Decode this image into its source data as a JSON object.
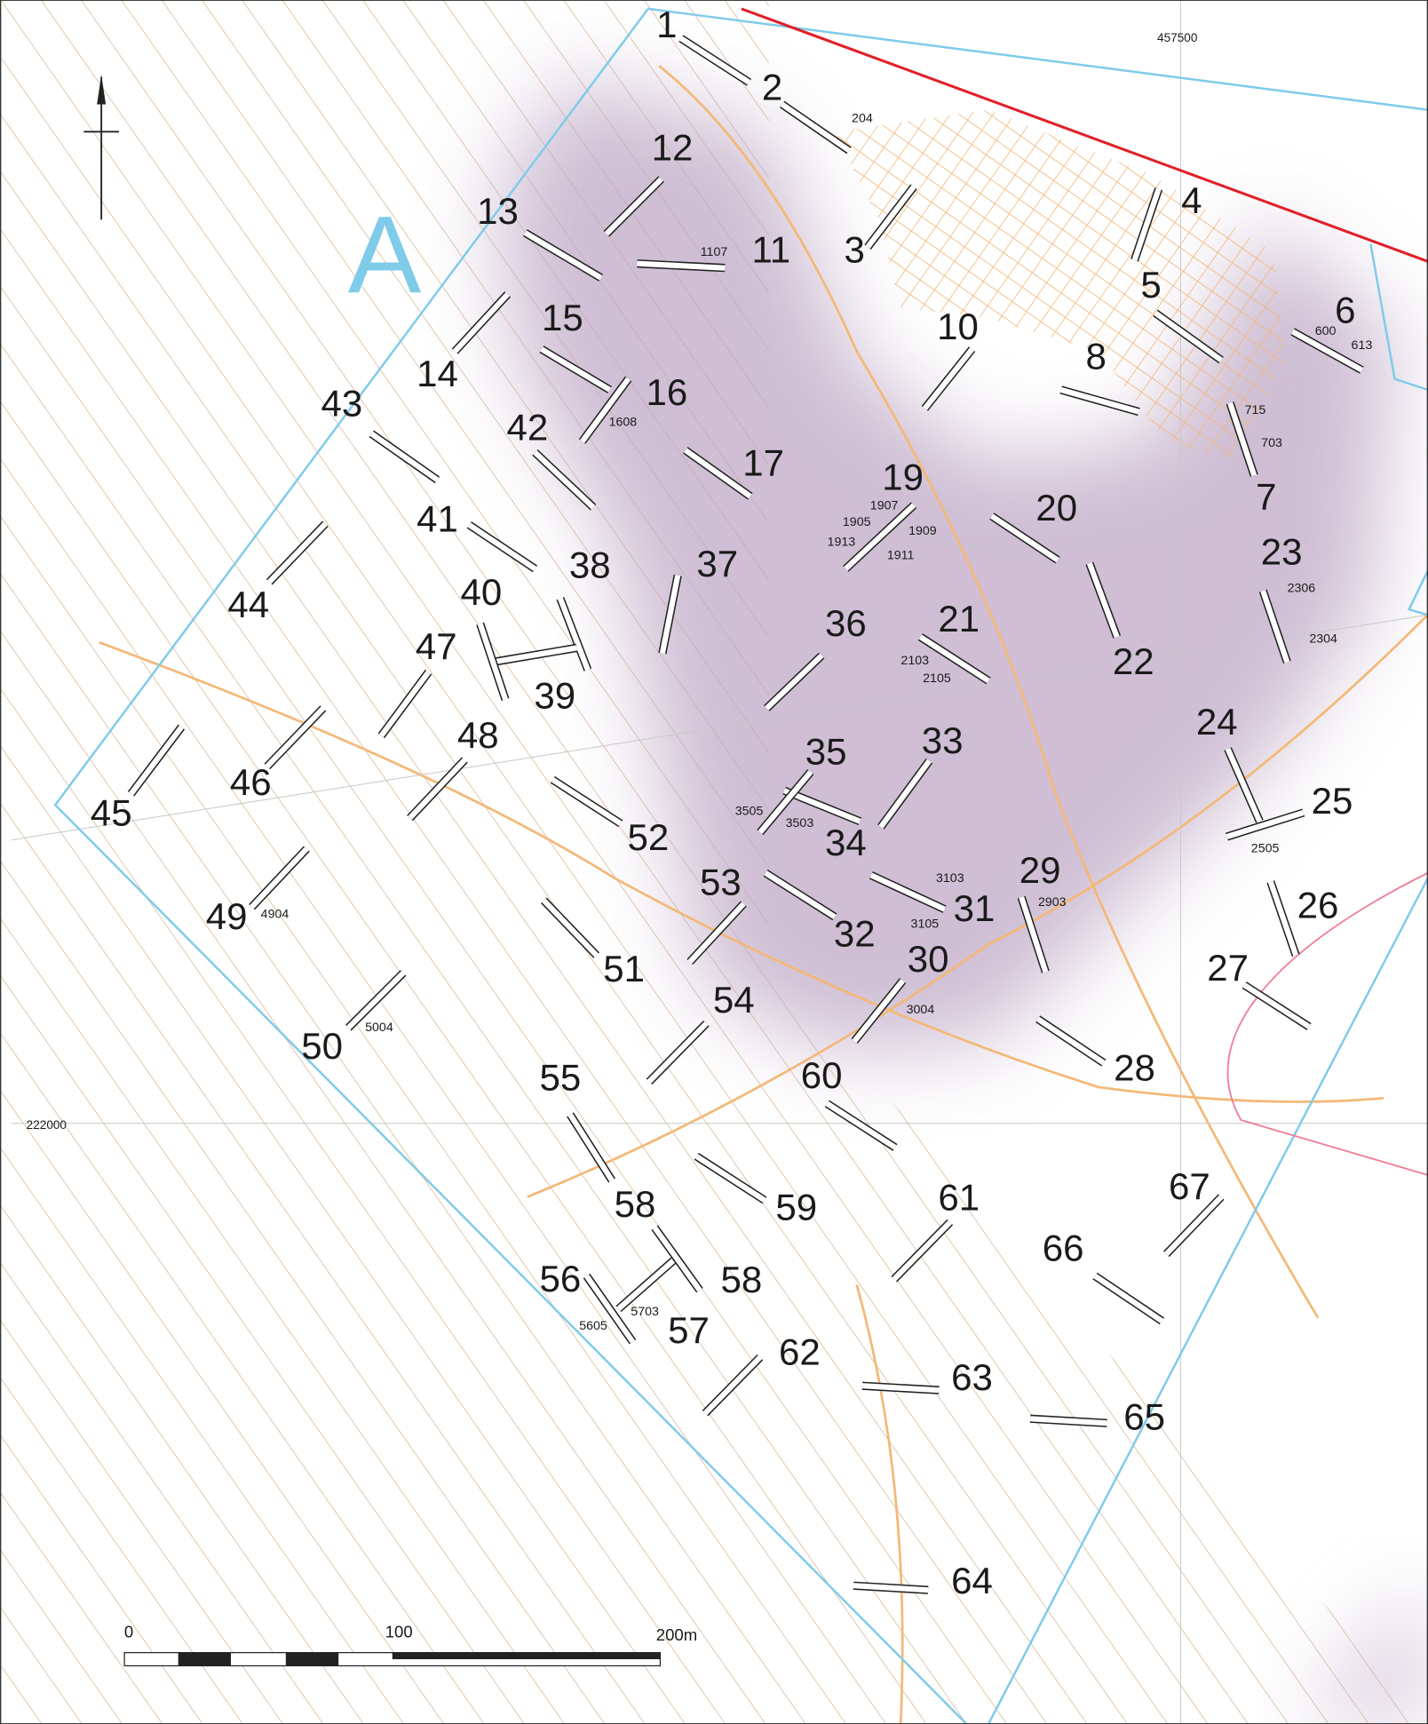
{
  "map": {
    "section_label": "A",
    "grid_labels": [
      "457500",
      "222000"
    ],
    "trenches": [
      "1",
      "2",
      "3",
      "4",
      "5",
      "6",
      "7",
      "8",
      "10",
      "11",
      "12",
      "13",
      "14",
      "15",
      "16",
      "17",
      "19",
      "20",
      "21",
      "22",
      "23",
      "24",
      "25",
      "26",
      "27",
      "28",
      "29",
      "30",
      "31",
      "32",
      "33",
      "34",
      "35",
      "36",
      "37",
      "38",
      "39",
      "40",
      "41",
      "42",
      "43",
      "44",
      "45",
      "46",
      "47",
      "48",
      "49",
      "50",
      "51",
      "52",
      "53",
      "54",
      "55",
      "56",
      "57",
      "58",
      "58",
      "59",
      "60",
      "61",
      "62",
      "63",
      "64",
      "65",
      "66",
      "67"
    ],
    "features": [
      "204",
      "1107",
      "1608",
      "600",
      "613",
      "715",
      "703",
      "1907",
      "1905",
      "1909",
      "1913",
      "1911",
      "2306",
      "2304",
      "2103",
      "2105",
      "3505",
      "3503",
      "3103",
      "3105",
      "2903",
      "2505",
      "3004",
      "4904",
      "5004",
      "5703",
      "5605"
    ],
    "scale_labels": [
      "0",
      "100",
      "200m"
    ]
  }
}
